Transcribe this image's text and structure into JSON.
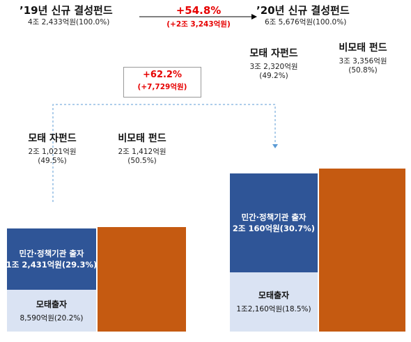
{
  "header": {
    "y19_title": "’19년 신규 결성펀드",
    "y19_sub": "4조 2,433억원(100.0%)",
    "growth_pct": "+54.8%",
    "growth_abs": "(+2조 3,243억원)",
    "y20_title": "’20년 신규 결성펀드",
    "y20_sub": "6조 5,676억원(100.0%)"
  },
  "callout": {
    "pct": "+62.2%",
    "abs": "(+7,729억원)"
  },
  "y19": {
    "mother_title": "모태 자펀드",
    "mother_amount": "2조 1,021억원",
    "mother_pct": "(49.5%)",
    "non_title": "비모태 펀드",
    "non_amount": "2조 1,412억원",
    "non_pct": "(50.5%)",
    "private_title": "민간·정책기관 출자",
    "private_value": "1조 2,431억원(29.3%)",
    "motae_title": "모태출자",
    "motae_value": "8,590억원(20.2%)"
  },
  "y20": {
    "mother_title": "모태 자펀드",
    "mother_amount": "3조 2,320억원",
    "mother_pct": "(49.2%)",
    "non_title": "비모태 펀드",
    "non_amount": "3조 3,356억원",
    "non_pct": "(50.8%)",
    "private_title": "민간·정책기관 출자",
    "private_value": "2조 160억원(30.7%)",
    "motae_title": "모태출자",
    "motae_value": "1조2,160억원(18.5%)"
  },
  "colors": {
    "private": "#2f5597",
    "motae": "#dae3f3",
    "nonmotae": "#c55a11",
    "highlight_red": "#e60000",
    "dashed": "#5b9bd5"
  },
  "chart_data": {
    "type": "bar",
    "categories": [
      "'19 모태 자펀드",
      "'19 비모태 펀드",
      "'20 모태 자펀드",
      "'20 비모태 펀드"
    ],
    "unit": "억원",
    "series": [
      {
        "name": "모태출자",
        "values": [
          8590,
          0,
          12160,
          0
        ]
      },
      {
        "name": "민간·정책기관 출자",
        "values": [
          12431,
          0,
          20160,
          0
        ]
      },
      {
        "name": "비모태 펀드",
        "values": [
          0,
          21412,
          0,
          33356
        ]
      }
    ],
    "totals": {
      "2019": 42433,
      "2020": 65676
    },
    "annotations": [
      {
        "text": "+54.8%",
        "detail": "(+2조 3,243억원)"
      },
      {
        "text": "+62.2%",
        "detail": "(+7,729억원)"
      }
    ]
  }
}
